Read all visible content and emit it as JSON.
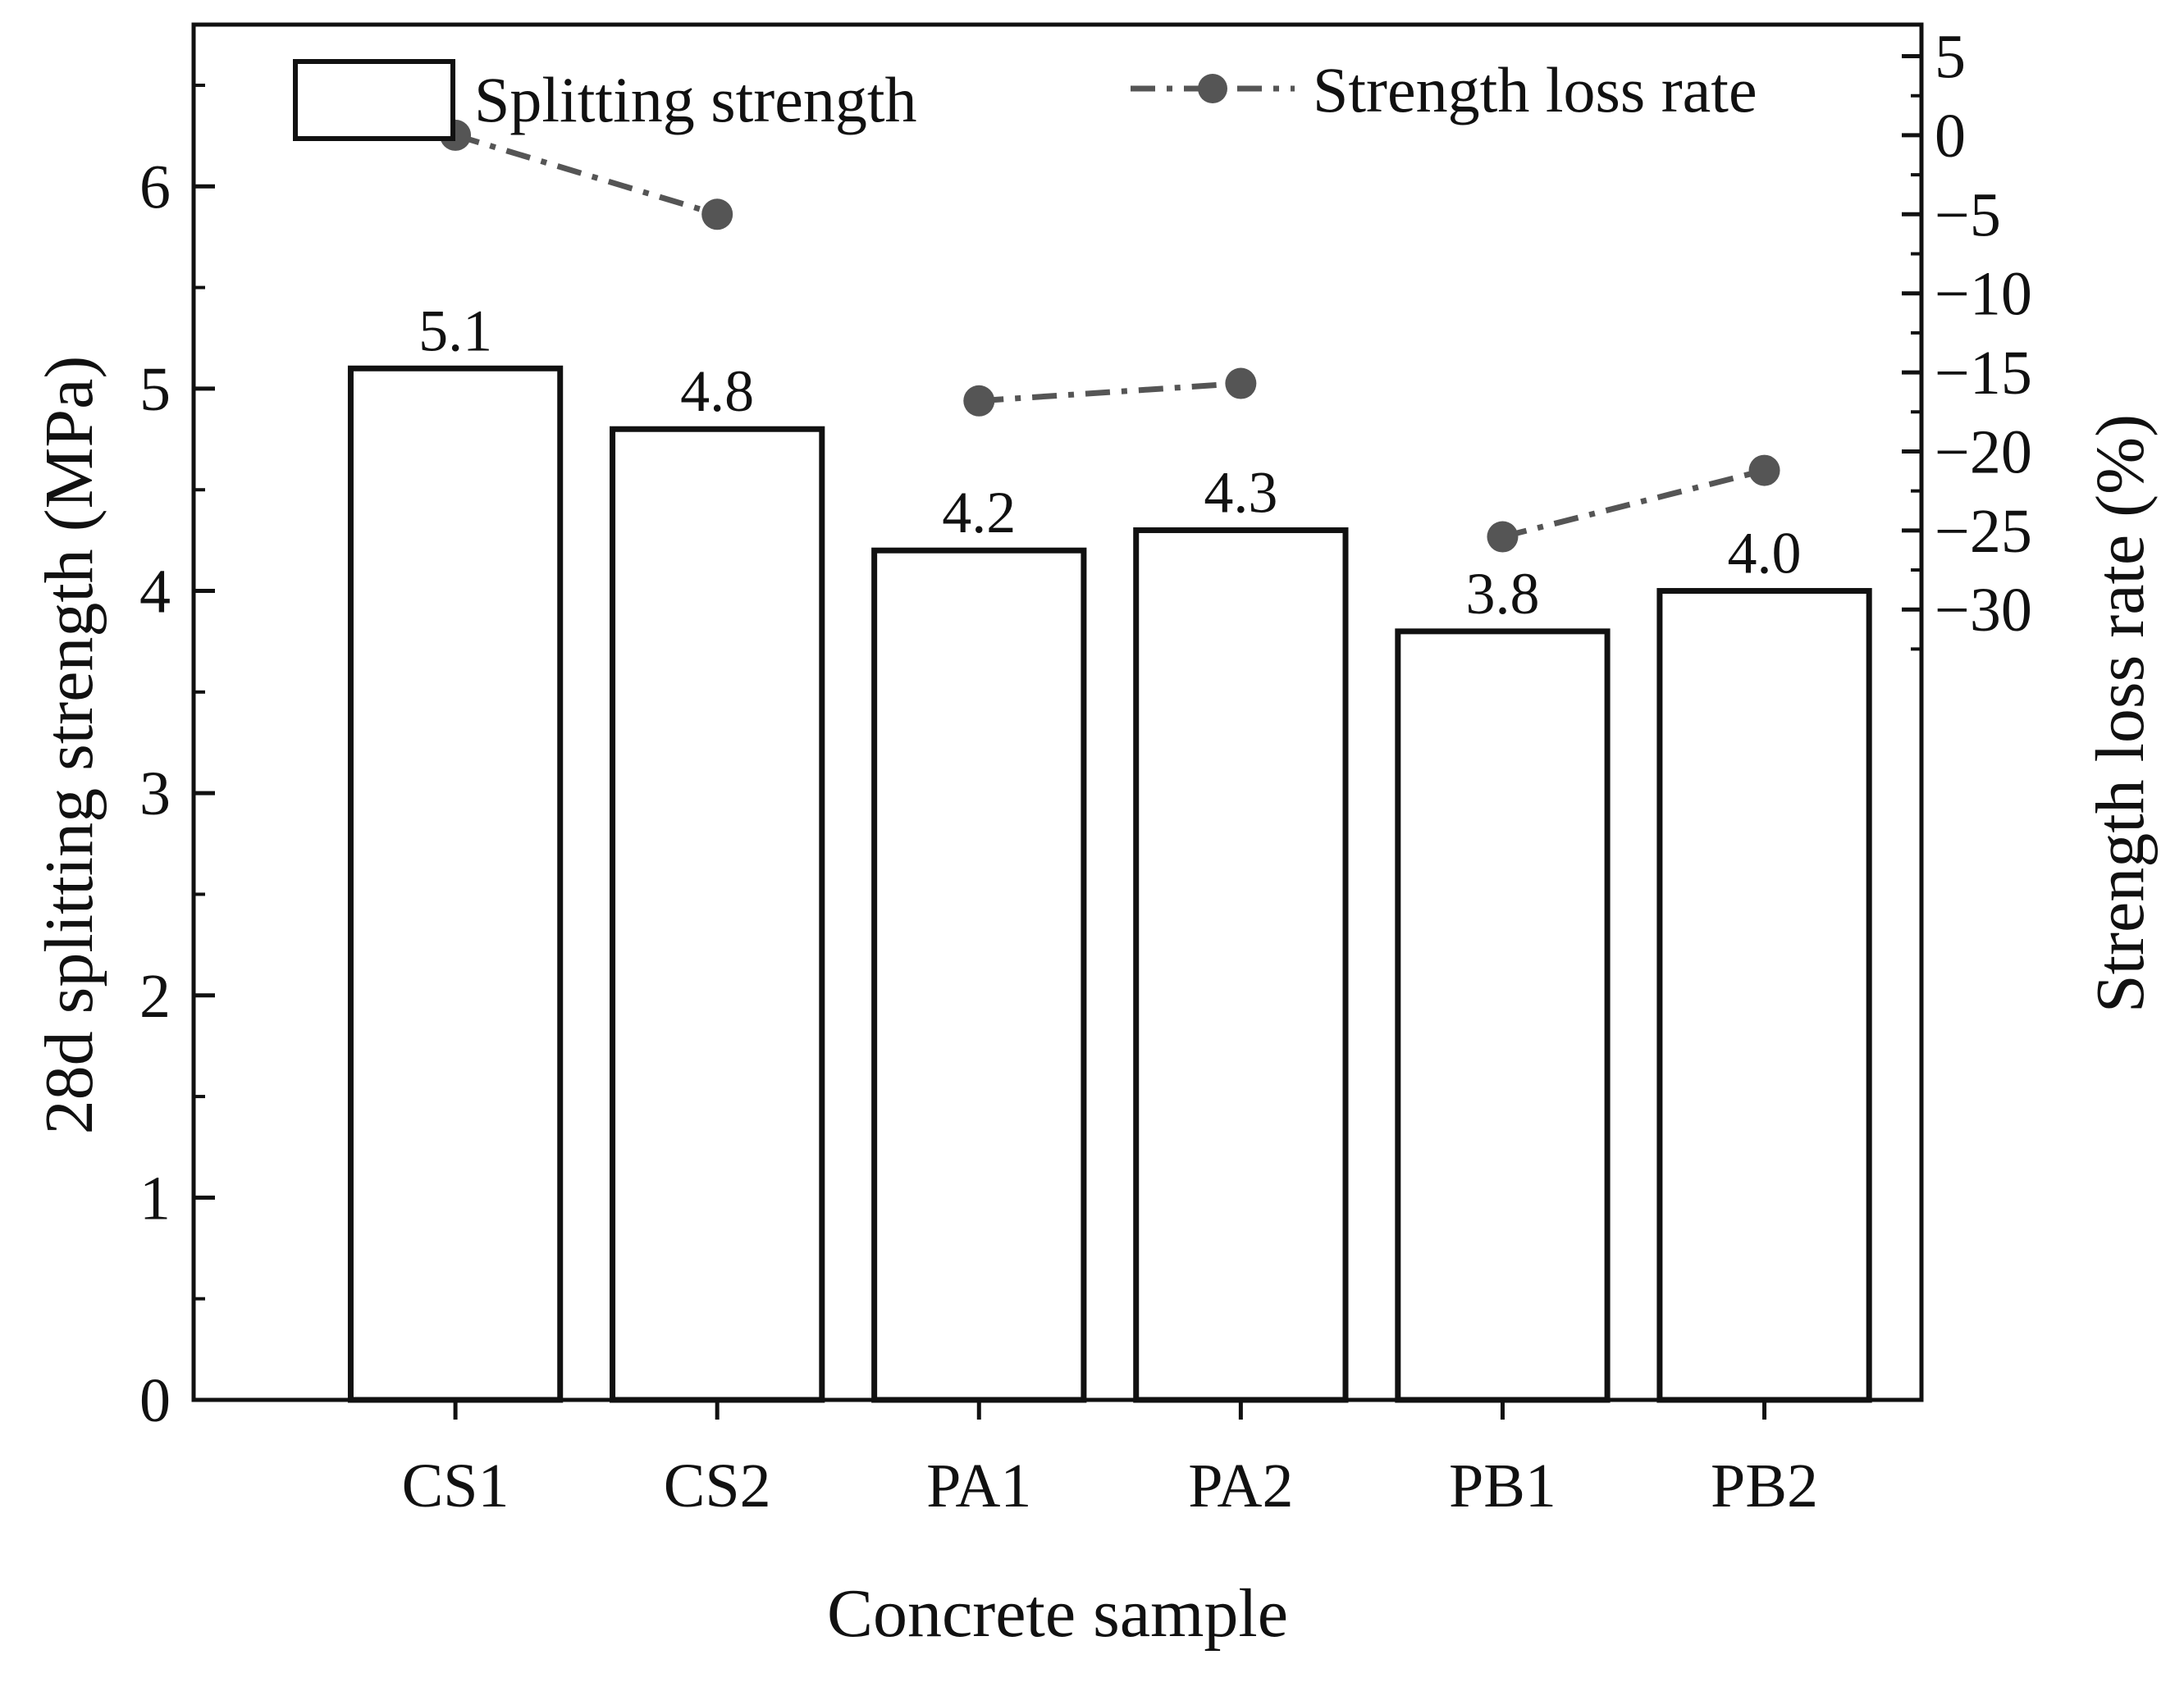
{
  "chart_data": {
    "type": "bar",
    "categories": [
      "CS1",
      "CS2",
      "PA1",
      "PA2",
      "PB1",
      "PB2"
    ],
    "series": [
      {
        "name": "Splitting strength",
        "axis": "left",
        "type": "bar",
        "values": [
          5.1,
          4.8,
          4.2,
          4.3,
          3.8,
          4.0
        ],
        "data_labels": [
          "5.1",
          "4.8",
          "4.2",
          "4.3",
          "3.8",
          "4.0"
        ]
      },
      {
        "name": "Strength loss rate",
        "axis": "right",
        "type": "line",
        "style": "dash-dot with circle markers",
        "values": [
          0,
          -5,
          -16.8,
          -15.7,
          -25.4,
          -21.2
        ],
        "segments": [
          [
            0,
            1
          ],
          [
            2,
            3
          ],
          [
            4,
            5
          ]
        ]
      }
    ],
    "xlabel": "Concrete sample",
    "ylabel": "28d splitting strength (MPa)",
    "ylabel_right": "Strength loss rate (%)",
    "ylim": [
      0,
      6.8
    ],
    "yticks": [
      0,
      1,
      2,
      3,
      4,
      5,
      6
    ],
    "ylim_right": [
      -80,
      7
    ],
    "yticks_right": [
      5,
      0,
      -5,
      -10,
      -15,
      -20,
      -25,
      -30
    ],
    "ytick_labels_right": [
      "5",
      "0",
      "−5",
      "−10",
      "−15",
      "−20",
      "−25",
      "−30"
    ],
    "legend_position": "top",
    "colors": {
      "bar_edge": "#111111",
      "bar_fill": "#ffffff",
      "line": "#555555",
      "marker": "#555555"
    }
  }
}
